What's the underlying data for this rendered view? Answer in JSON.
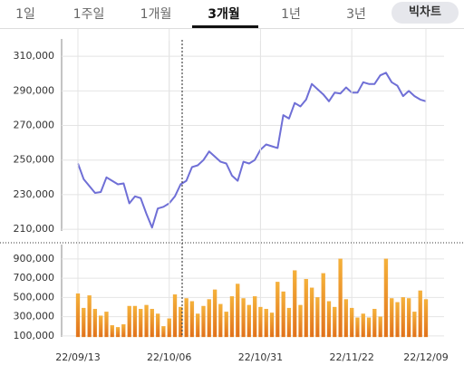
{
  "tabs": [
    "1일",
    "1주일",
    "1개월",
    "3개월",
    "1년",
    "3년"
  ],
  "active_tab": "3개월",
  "button": "빅차트",
  "chart_data": [
    {
      "type": "line",
      "color": "#6f6fd6",
      "grid": true,
      "ylim": [
        209000,
        319000
      ],
      "yticks": [
        {
          "value": 210000,
          "label": "210,000"
        },
        {
          "value": 230000,
          "label": "230,000"
        },
        {
          "value": 250000,
          "label": "250,000"
        },
        {
          "value": 270000,
          "label": "270,000"
        },
        {
          "value": 290000,
          "label": "290,000"
        },
        {
          "value": 310000,
          "label": "310,000"
        }
      ],
      "values": [
        248000,
        239000,
        235000,
        231000,
        231500,
        240000,
        238000,
        236000,
        236500,
        225000,
        229000,
        228000,
        219000,
        211000,
        222000,
        223000,
        225000,
        229000,
        236000,
        238000,
        246000,
        247000,
        250000,
        255000,
        252000,
        249000,
        248000,
        241000,
        238000,
        249000,
        248000,
        250000,
        256000,
        259000,
        258000,
        257000,
        276000,
        274000,
        283000,
        281000,
        285000,
        294000,
        291000,
        288000,
        284000,
        289000,
        288500,
        292000,
        289000,
        289000,
        295000,
        294000,
        294000,
        299000,
        300500,
        295000,
        293000,
        287000,
        290000,
        287000,
        285000,
        284000
      ]
    },
    {
      "type": "bar",
      "color": "#f0a030",
      "grid": true,
      "ylim": [
        90000,
        1030000
      ],
      "yticks": [
        {
          "value": 100000,
          "label": "100,000"
        },
        {
          "value": 300000,
          "label": "300,000"
        },
        {
          "value": 500000,
          "label": "500,000"
        },
        {
          "value": 700000,
          "label": "700,000"
        },
        {
          "value": 900000,
          "label": "900,000"
        }
      ],
      "categories": [
        "22/09/13",
        null,
        null,
        null,
        null,
        null,
        null,
        null,
        null,
        null,
        null,
        null,
        null,
        null,
        null,
        null,
        "22/10/06",
        null,
        null,
        null,
        null,
        null,
        null,
        null,
        null,
        null,
        null,
        null,
        null,
        null,
        null,
        null,
        "22/10/31",
        null,
        null,
        null,
        null,
        null,
        null,
        null,
        null,
        null,
        null,
        null,
        null,
        null,
        null,
        null,
        "22/11/22",
        null,
        null,
        null,
        null,
        null,
        null,
        null,
        null,
        null,
        null,
        null,
        null,
        "22/12/09"
      ],
      "values": [
        540000,
        390000,
        520000,
        380000,
        310000,
        350000,
        210000,
        190000,
        220000,
        410000,
        410000,
        380000,
        420000,
        380000,
        330000,
        200000,
        280000,
        530000,
        400000,
        490000,
        460000,
        330000,
        410000,
        480000,
        580000,
        430000,
        350000,
        510000,
        640000,
        490000,
        420000,
        510000,
        400000,
        380000,
        340000,
        660000,
        560000,
        390000,
        780000,
        420000,
        690000,
        600000,
        500000,
        750000,
        460000,
        400000,
        900000,
        480000,
        390000,
        290000,
        330000,
        290000,
        380000,
        300000,
        900000,
        490000,
        450000,
        500000,
        490000,
        350000,
        570000,
        480000
      ]
    }
  ]
}
